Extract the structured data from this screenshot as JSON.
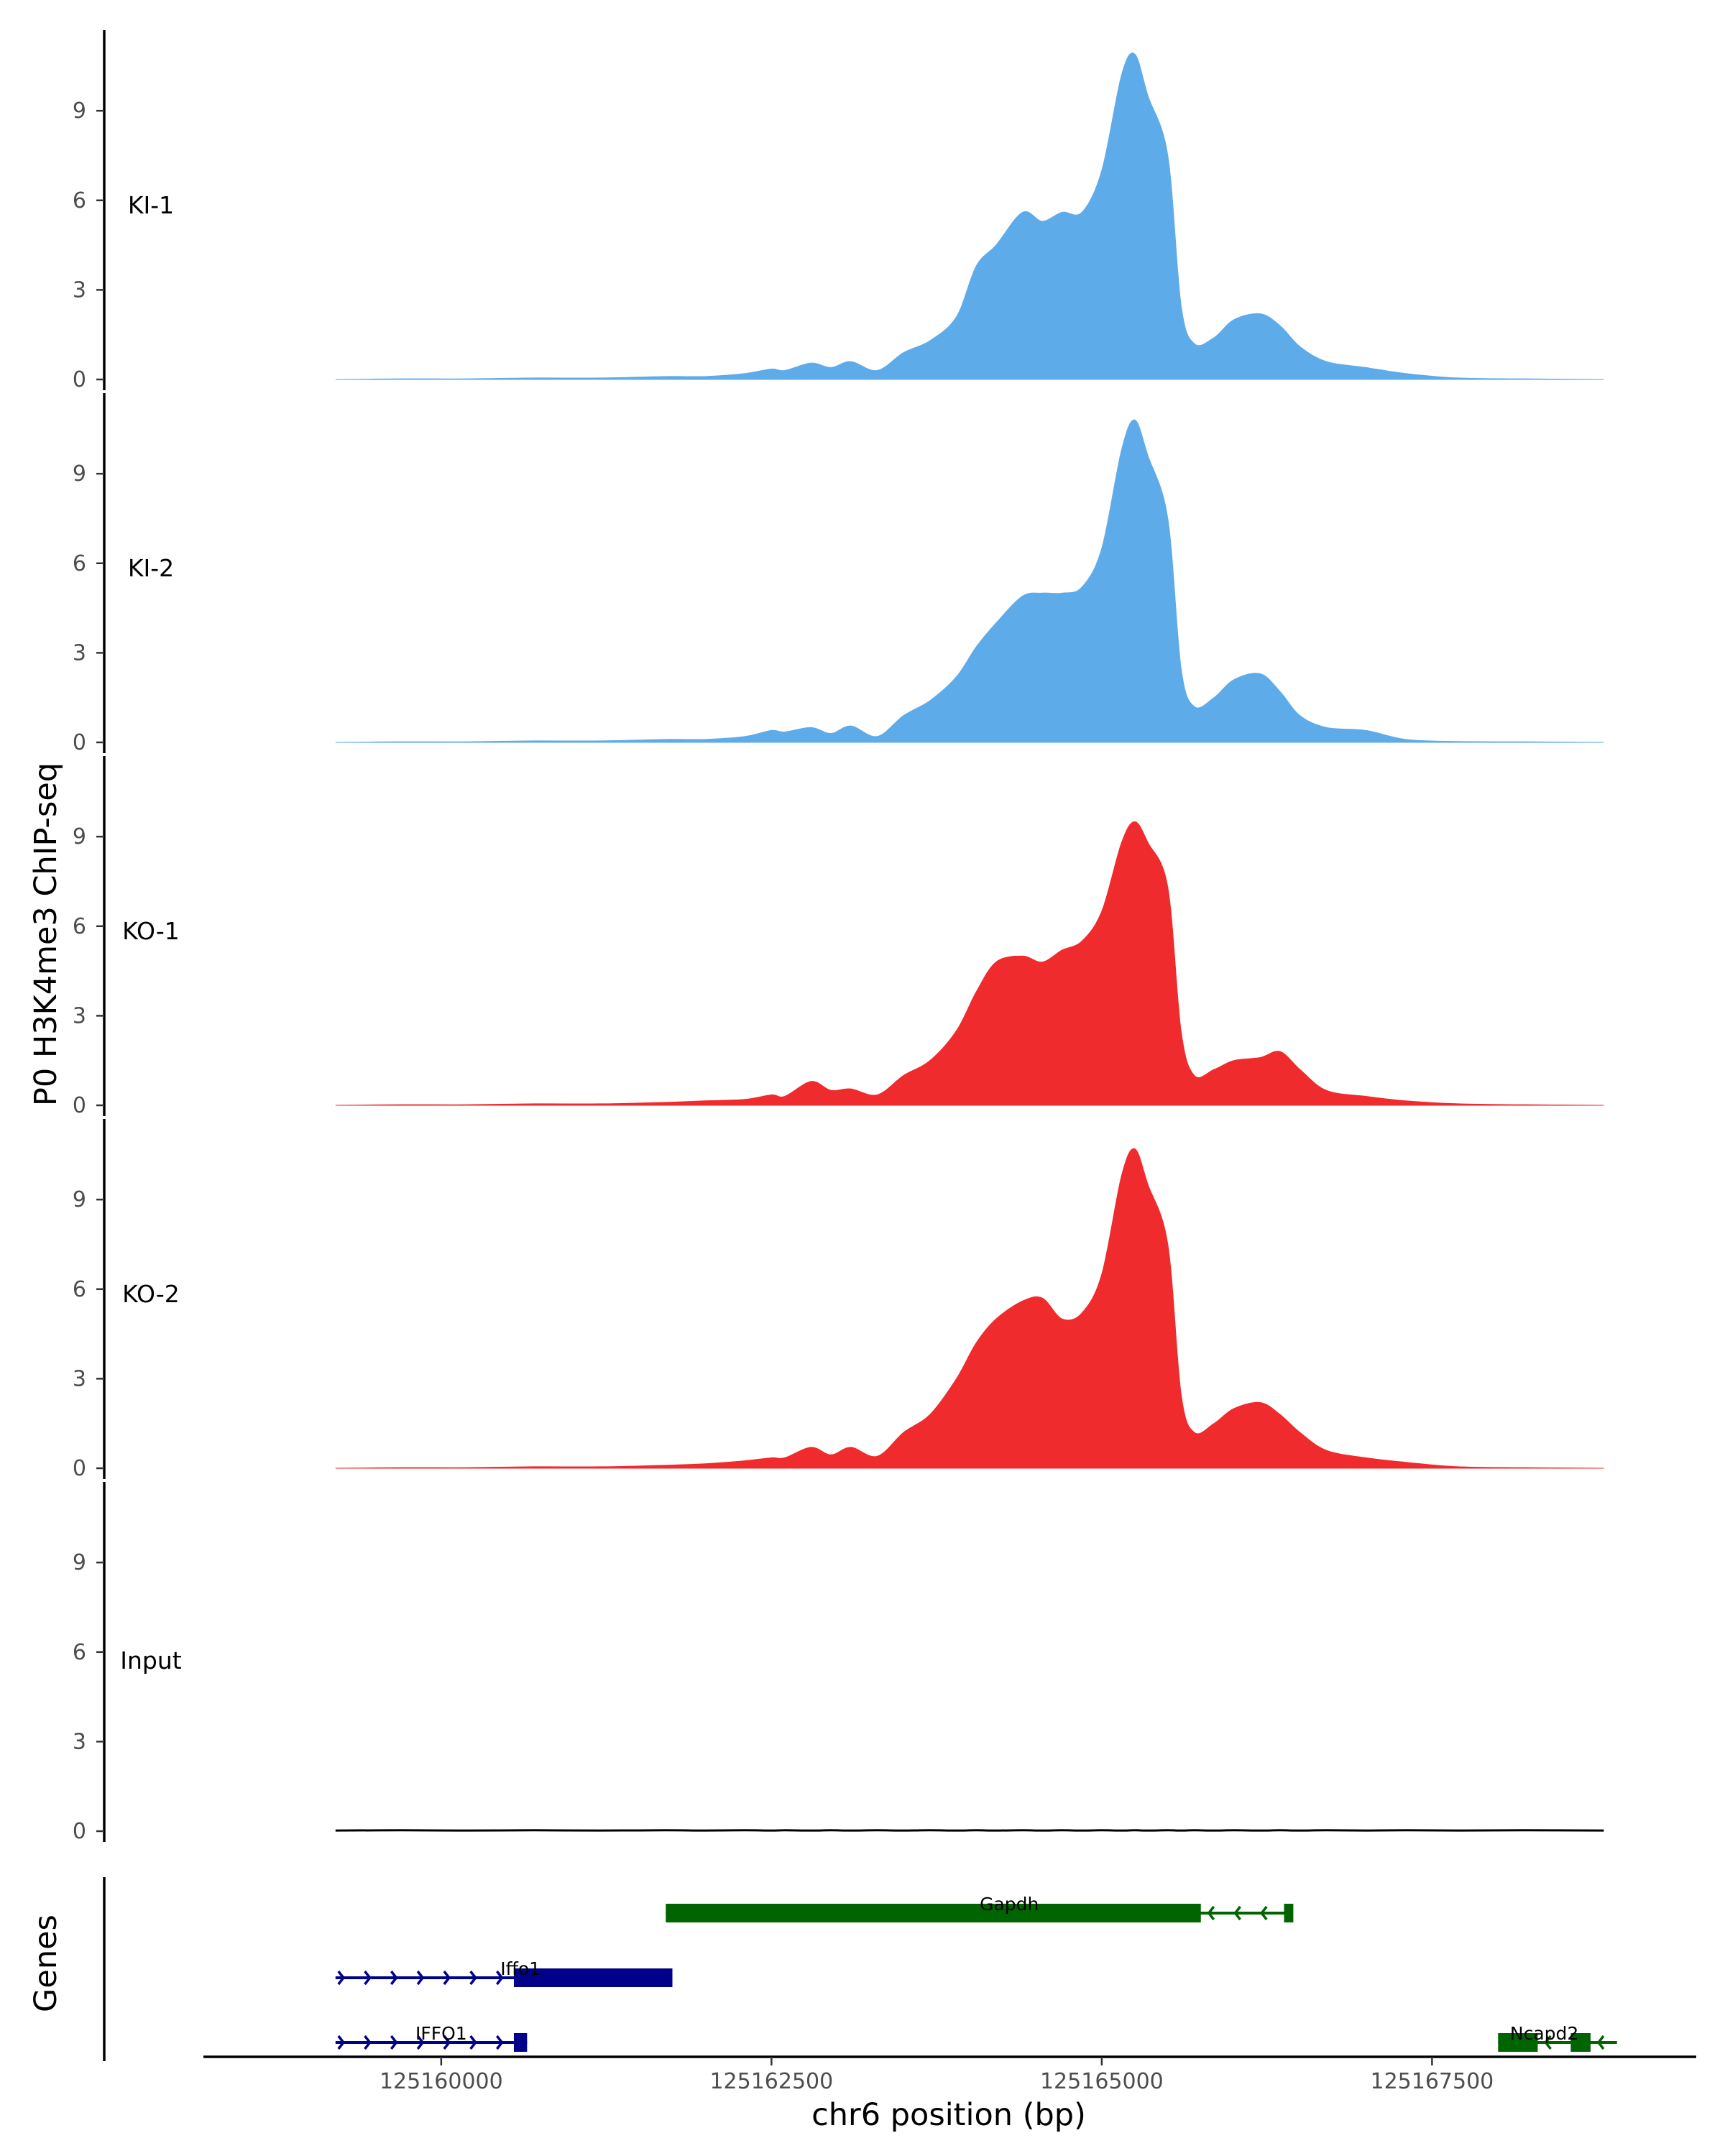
{
  "chart_data": {
    "type": "area",
    "title": "",
    "ylabel": "P0 H3K4me3 ChIP-seq",
    "xlabel": "chr6 position (bp)",
    "genes_label": "Genes",
    "xlim": [
      125158200,
      125169500
    ],
    "ylim": [
      0,
      11.7
    ],
    "yticks": [
      0,
      3,
      6,
      9
    ],
    "xticks": [
      125160000,
      125162500,
      125165000,
      125167500
    ],
    "x": [
      125159200,
      125159700,
      125160200,
      125160700,
      125161200,
      125161700,
      125162000,
      125162300,
      125162500,
      125162600,
      125162800,
      125162950,
      125163100,
      125163300,
      125163500,
      125163700,
      125163900,
      125164050,
      125164200,
      125164400,
      125164550,
      125164700,
      125164850,
      125165000,
      125165150,
      125165250,
      125165350,
      125165500,
      125165600,
      125165700,
      125165850,
      125166000,
      125166200,
      125166350,
      125166500,
      125166700,
      125167000,
      125167300,
      125167700,
      125168200,
      125168800
    ],
    "series": [
      {
        "name": "KI-1",
        "color": "#5eabea",
        "values": [
          0,
          0.02,
          0.02,
          0.05,
          0.05,
          0.1,
          0.1,
          0.2,
          0.35,
          0.3,
          0.55,
          0.4,
          0.6,
          0.3,
          0.9,
          1.3,
          2.1,
          3.8,
          4.5,
          5.6,
          5.3,
          5.6,
          5.6,
          7.0,
          10.2,
          10.9,
          9.5,
          7.5,
          2.5,
          1.2,
          1.4,
          2.0,
          2.2,
          1.8,
          1.1,
          0.6,
          0.4,
          0.2,
          0.05,
          0.02,
          0
        ]
      },
      {
        "name": "KI-2",
        "color": "#5eabea",
        "values": [
          0,
          0.02,
          0.02,
          0.05,
          0.05,
          0.1,
          0.1,
          0.2,
          0.4,
          0.35,
          0.5,
          0.3,
          0.55,
          0.2,
          0.9,
          1.4,
          2.2,
          3.2,
          4.0,
          4.9,
          5.0,
          5.0,
          5.2,
          6.5,
          9.8,
          10.8,
          9.6,
          7.5,
          2.5,
          1.2,
          1.5,
          2.1,
          2.3,
          1.7,
          0.9,
          0.5,
          0.4,
          0.1,
          0.03,
          0.02,
          0
        ]
      },
      {
        "name": "KO-1",
        "color": "#ef2b2d",
        "values": [
          0,
          0.02,
          0.02,
          0.05,
          0.05,
          0.1,
          0.15,
          0.2,
          0.35,
          0.3,
          0.8,
          0.5,
          0.55,
          0.35,
          1.0,
          1.5,
          2.5,
          3.8,
          4.8,
          5.0,
          4.8,
          5.2,
          5.5,
          6.5,
          8.8,
          9.5,
          8.8,
          7.3,
          2.5,
          1.0,
          1.2,
          1.5,
          1.6,
          1.8,
          1.2,
          0.5,
          0.3,
          0.15,
          0.05,
          0.02,
          0
        ]
      },
      {
        "name": "KO-2",
        "color": "#ef2b2d",
        "values": [
          0,
          0.02,
          0.02,
          0.05,
          0.05,
          0.1,
          0.15,
          0.25,
          0.35,
          0.35,
          0.7,
          0.45,
          0.7,
          0.4,
          1.2,
          1.8,
          3.0,
          4.2,
          5.0,
          5.6,
          5.7,
          5.0,
          5.2,
          6.5,
          9.8,
          10.7,
          9.5,
          7.5,
          2.5,
          1.2,
          1.5,
          2.0,
          2.2,
          1.8,
          1.2,
          0.6,
          0.35,
          0.2,
          0.05,
          0.02,
          0
        ]
      },
      {
        "name": "Input",
        "color": "#000000",
        "values": [
          0.02,
          0.03,
          0.02,
          0.03,
          0.02,
          0.03,
          0.02,
          0.03,
          0.02,
          0.03,
          0.02,
          0.03,
          0.02,
          0.03,
          0.02,
          0.03,
          0.02,
          0.03,
          0.02,
          0.03,
          0.02,
          0.03,
          0.02,
          0.03,
          0.02,
          0.03,
          0.02,
          0.03,
          0.02,
          0.03,
          0.02,
          0.03,
          0.02,
          0.03,
          0.02,
          0.03,
          0.02,
          0.03,
          0.02,
          0.03,
          0.02
        ]
      }
    ],
    "genes": [
      {
        "name": "Gapdh",
        "strand": "-",
        "row": 1,
        "color": "#006400",
        "start": 125161700,
        "end": 125166400,
        "exons": [
          [
            125161700,
            125165750
          ],
          [
            125166380,
            125166450
          ]
        ]
      },
      {
        "name": "Iffo1",
        "strand": "+",
        "row": 2,
        "color": "#00008b",
        "start": 125159200,
        "end": 125161750,
        "exons": [
          [
            125160550,
            125161750
          ]
        ]
      },
      {
        "name": "IFFO1",
        "strand": "+",
        "row": 3,
        "color": "#00008b",
        "start": 125159200,
        "end": 125160650,
        "exons": [
          [
            125160550,
            125160650
          ]
        ]
      },
      {
        "name": "Ncapd2",
        "strand": "-",
        "row": 3,
        "color": "#006400",
        "start": 125168000,
        "end": 125168900,
        "exons": [
          [
            125168000,
            125168300
          ],
          [
            125168550,
            125168700
          ]
        ]
      }
    ]
  }
}
